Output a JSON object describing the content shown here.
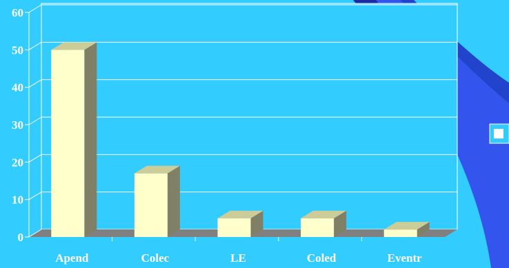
{
  "chart_data": {
    "type": "bar",
    "categories": [
      "Apend",
      "Colec",
      "LE",
      "Coled",
      "Eventr"
    ],
    "values": [
      50,
      17,
      5,
      5,
      2
    ],
    "ylim": [
      0,
      60
    ],
    "yticks": [
      0,
      10,
      20,
      30,
      40,
      50,
      60
    ],
    "grid": true,
    "legend": "right",
    "series": [
      {
        "values": [
          50,
          17,
          5,
          5,
          2
        ]
      }
    ],
    "colors": {
      "background": "#33ccff",
      "bar_front": "#ffffcc",
      "bar_top": "#cccc99",
      "bar_side": "#808066",
      "floor": "#808080",
      "gridline": "#ffffff",
      "label": "#ffffff",
      "swoosh": "#3355ee"
    }
  }
}
